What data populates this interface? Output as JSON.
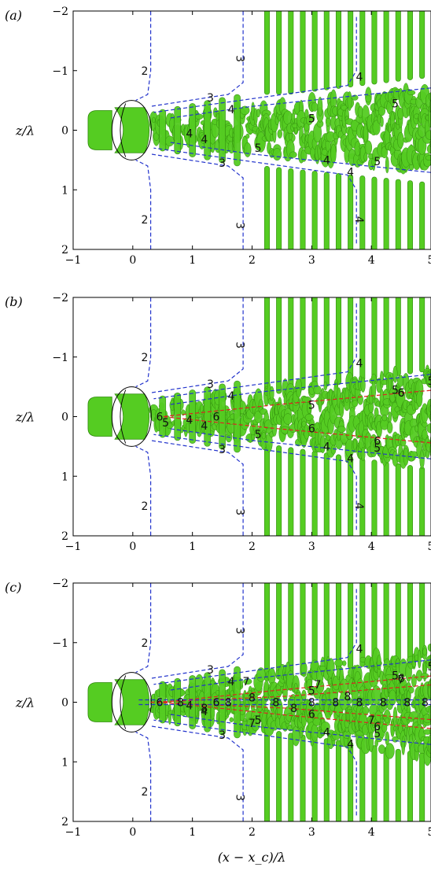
{
  "figure": {
    "panels": [
      {
        "label": "(a)",
        "ylabel": "z/λ",
        "contours": [
          {
            "level": "2",
            "color": "blue",
            "labels": [
              "2",
              "2"
            ]
          },
          {
            "level": "3",
            "color": "blue",
            "labels": [
              "3",
              "3",
              "3",
              "3"
            ]
          },
          {
            "level": "4",
            "color": "blue",
            "labels": [
              "4",
              "4",
              "4",
              "4",
              "4",
              "4",
              "4"
            ]
          },
          {
            "level": "5",
            "color": "blue",
            "labels": [
              "5",
              "5",
              "5",
              "5"
            ]
          }
        ]
      },
      {
        "label": "(b)",
        "ylabel": "z/λ",
        "contours": [
          {
            "level": "2",
            "color": "blue",
            "labels": [
              "2",
              "2"
            ]
          },
          {
            "level": "3",
            "color": "blue",
            "labels": [
              "3",
              "3",
              "3",
              "3"
            ]
          },
          {
            "level": "4",
            "color": "blue",
            "labels": [
              "4",
              "4",
              "4",
              "4",
              "4",
              "4",
              "4"
            ]
          },
          {
            "level": "5",
            "color": "blue",
            "labels": [
              "5",
              "5",
              "5",
              "5",
              "5",
              "5"
            ]
          },
          {
            "level": "6",
            "color": "red",
            "labels": [
              "6",
              "6",
              "6",
              "6",
              "6",
              "6"
            ]
          }
        ]
      },
      {
        "label": "(c)",
        "ylabel": "z/λ",
        "contours": [
          {
            "level": "2",
            "color": "blue",
            "labels": [
              "2",
              "2"
            ]
          },
          {
            "level": "3",
            "color": "blue",
            "labels": [
              "3",
              "3",
              "3",
              "3"
            ]
          },
          {
            "level": "4",
            "color": "blue",
            "labels": [
              "4",
              "4",
              "4",
              "4",
              "4",
              "4"
            ]
          },
          {
            "level": "5",
            "color": "blue",
            "labels": [
              "5",
              "5",
              "5",
              "5",
              "5"
            ]
          },
          {
            "level": "6",
            "color": "red",
            "labels": [
              "6",
              "6",
              "6",
              "6",
              "6"
            ]
          },
          {
            "level": "7",
            "color": "red",
            "labels": [
              "7",
              "7",
              "7",
              "7",
              "7"
            ]
          },
          {
            "level": "8",
            "color": "blue",
            "labels": [
              "8",
              "8",
              "8",
              "8",
              "8",
              "8",
              "8",
              "8",
              "8",
              "8",
              "8",
              "8",
              "8"
            ]
          }
        ]
      }
    ],
    "xlabel": "(x − x_c)/λ",
    "x_ticks": [
      "−1",
      "0",
      "1",
      "2",
      "3",
      "4",
      "5"
    ],
    "y_ticks": [
      "−2",
      "−1",
      "0",
      "1",
      "2"
    ],
    "x_range": [
      -1,
      5
    ],
    "y_range": [
      -2,
      2
    ],
    "colors": {
      "isosurface": "#55cc22",
      "isosurface_dark": "#2f8a0c",
      "contour_blue": "#2233cc",
      "contour_red": "#dd2222",
      "axis": "#000000"
    }
  }
}
